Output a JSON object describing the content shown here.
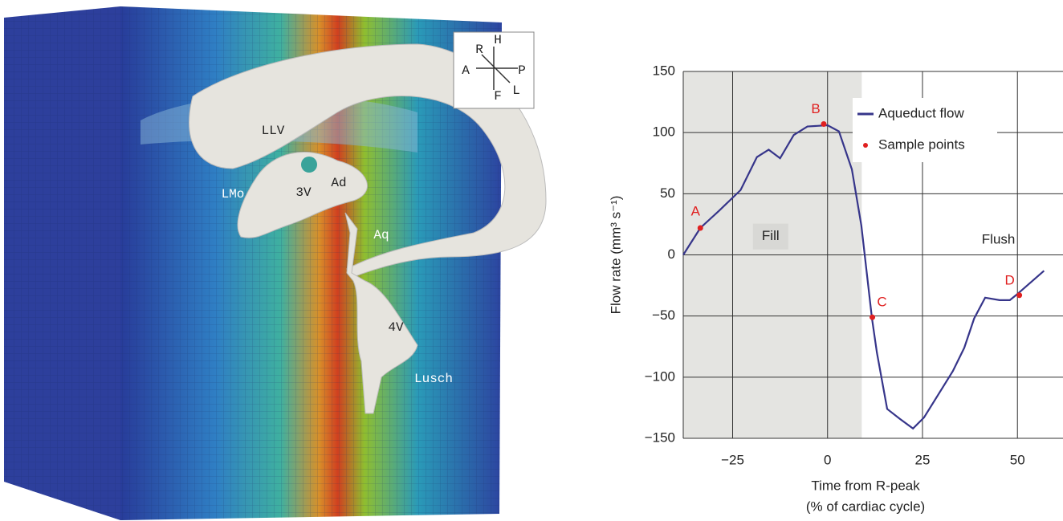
{
  "chart_data": {
    "type": "line",
    "y_label": "Flow rate (mm³ s⁻¹)",
    "x_label": [
      "Time from R-peak",
      "(% of cardiac cycle)"
    ],
    "xlim": [
      -38,
      62
    ],
    "ylim": [
      -150,
      150
    ],
    "xticks": [
      {
        "value": -25,
        "label": "−25"
      },
      0,
      25,
      50
    ],
    "yticks": [
      {
        "value": -150,
        "label": "−150"
      },
      {
        "value": -100,
        "label": "−100"
      },
      {
        "value": -50,
        "label": "−50"
      },
      0,
      50,
      100,
      150
    ],
    "grid": true,
    "legend": "upper right",
    "shaded_region": {
      "x": [
        -38,
        9
      ],
      "color": "#e4e4e1"
    },
    "annotations": [
      {
        "text": "Fill",
        "x": -15,
        "y": 15
      },
      {
        "text": "Flush",
        "x": 45,
        "y": 12
      }
    ],
    "series": [
      {
        "name": "Aqueduct flow",
        "color": "#36358a",
        "x": [
          -38,
          -33.5,
          -28.6,
          -22.9,
          -18.6,
          -15.5,
          -12.5,
          -8.9,
          -5.3,
          0,
          3,
          6.4,
          8.9,
          11.7,
          13,
          15.7,
          19,
          22.5,
          25.4,
          29.2,
          33,
          36,
          38.6,
          41.5,
          45.3,
          48,
          50,
          57
        ],
        "values": [
          0,
          22,
          36,
          53,
          80,
          86,
          79,
          98,
          105,
          106,
          101,
          70,
          24,
          -52,
          -80,
          -126,
          -134,
          -142,
          -133,
          -114,
          -95,
          -76,
          -52,
          -35,
          -37,
          -37,
          -32,
          -13
        ]
      },
      {
        "name": "Sample points",
        "color": "#e02020",
        "style": "markers",
        "x": [
          -33.5,
          -1,
          11.8,
          50.5
        ],
        "values": [
          22,
          107,
          -51,
          -33
        ],
        "point_labels": [
          "A",
          "B",
          "C",
          "D"
        ]
      }
    ]
  },
  "rendering": {
    "labels": [
      "LLV",
      "3V",
      "Ad",
      "LMo",
      "Aq",
      "4V",
      "Lusch"
    ],
    "orientation": [
      "R",
      "H",
      "A",
      "P",
      "F",
      "L"
    ]
  }
}
